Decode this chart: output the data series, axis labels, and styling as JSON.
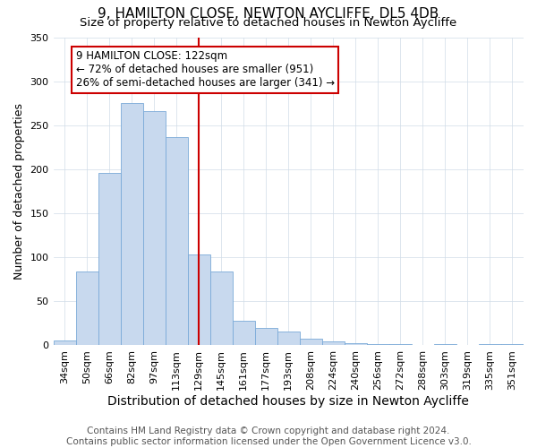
{
  "title1": "9, HAMILTON CLOSE, NEWTON AYCLIFFE, DL5 4DB",
  "title2": "Size of property relative to detached houses in Newton Aycliffe",
  "xlabel": "Distribution of detached houses by size in Newton Aycliffe",
  "ylabel": "Number of detached properties",
  "categories": [
    "34sqm",
    "50sqm",
    "66sqm",
    "82sqm",
    "97sqm",
    "113sqm",
    "129sqm",
    "145sqm",
    "161sqm",
    "177sqm",
    "193sqm",
    "208sqm",
    "224sqm",
    "240sqm",
    "256sqm",
    "272sqm",
    "288sqm",
    "303sqm",
    "319sqm",
    "335sqm",
    "351sqm"
  ],
  "bar_heights": [
    6,
    84,
    196,
    275,
    266,
    237,
    103,
    84,
    28,
    20,
    16,
    8,
    5,
    3,
    1,
    1,
    0,
    1,
    0,
    1,
    1
  ],
  "bar_color": "#c8d9ee",
  "bar_edge_color": "#7aaad8",
  "vline_x": 6.0,
  "vline_color": "#cc0000",
  "annotation_line1": "9 HAMILTON CLOSE: 122sqm",
  "annotation_line2": "← 72% of detached houses are smaller (951)",
  "annotation_line3": "26% of semi-detached houses are larger (341) →",
  "annotation_box_color": "#ffffff",
  "annotation_box_edge": "#cc0000",
  "footer1": "Contains HM Land Registry data © Crown copyright and database right 2024.",
  "footer2": "Contains public sector information licensed under the Open Government Licence v3.0.",
  "ylim": [
    0,
    350
  ],
  "title1_fontsize": 11,
  "title2_fontsize": 9.5,
  "xlabel_fontsize": 10,
  "ylabel_fontsize": 9,
  "tick_fontsize": 8,
  "footer_fontsize": 7.5,
  "annot_fontsize": 8.5
}
